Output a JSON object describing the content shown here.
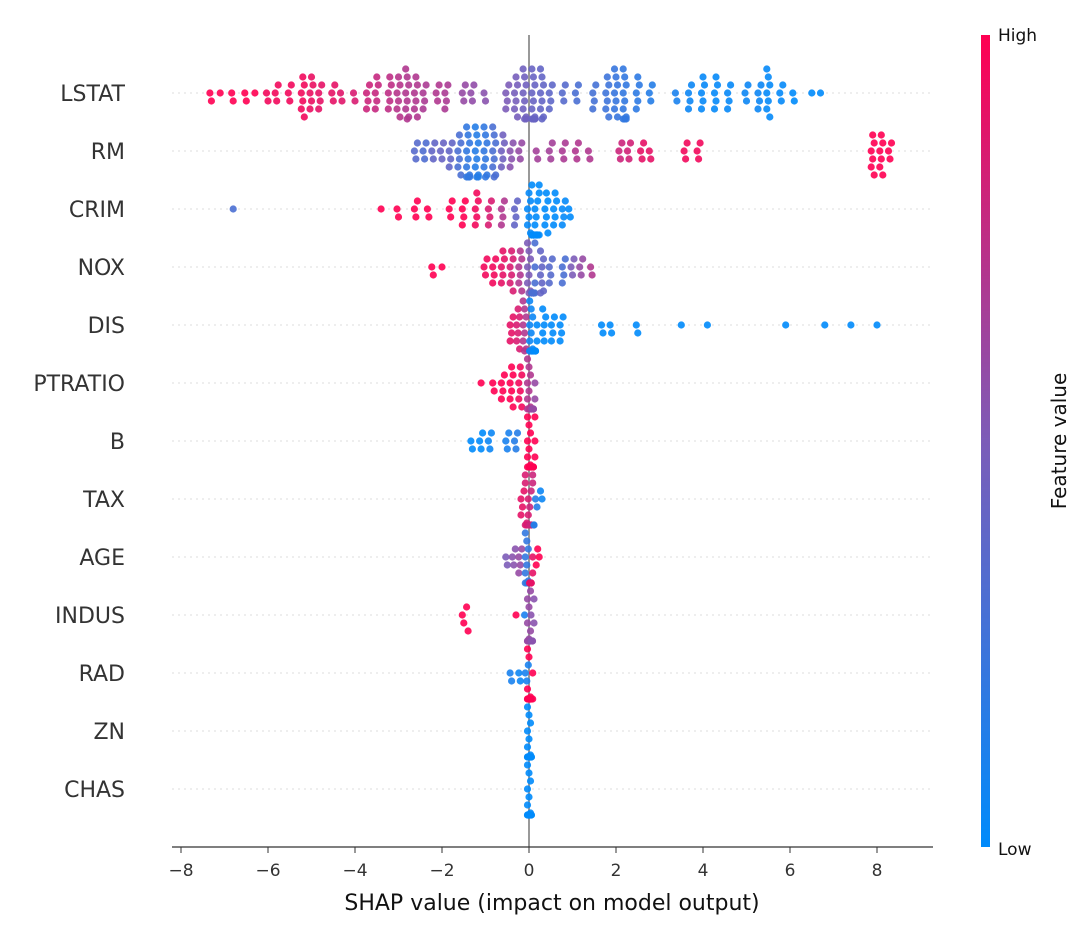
{
  "chart_data": {
    "type": "scatter",
    "subtype": "beeswarm",
    "title": "",
    "xlabel": "SHAP value (impact on model output)",
    "ylabel": "",
    "xlim": [
      -8.2,
      9.3
    ],
    "xticks": [
      -8,
      -6,
      -4,
      -2,
      0,
      2,
      4,
      6,
      8
    ],
    "xtick_labels": [
      "−8",
      "−6",
      "−4",
      "−2",
      "0",
      "2",
      "4",
      "6",
      "8"
    ],
    "grid": "dotted horizontal per feature",
    "colorbar": {
      "label": "Feature value",
      "high_label": "High",
      "low_label": "Low",
      "high_color": "#ff0052",
      "low_color": "#008bfb",
      "placement": "right"
    },
    "point_format": "[shap_value, feature_value_0_to_1, count]",
    "features": [
      {
        "name": "LSTAT",
        "points": [
          [
            -7.3,
            1,
            2
          ],
          [
            -7.1,
            1,
            1
          ],
          [
            -6.8,
            1,
            2
          ],
          [
            -6.5,
            1,
            2
          ],
          [
            -6.3,
            1,
            1
          ],
          [
            -6.0,
            0.95,
            2
          ],
          [
            -5.8,
            0.95,
            3
          ],
          [
            -5.5,
            0.95,
            3
          ],
          [
            -5.2,
            0.95,
            6
          ],
          [
            -5.0,
            0.92,
            5
          ],
          [
            -4.8,
            0.9,
            4
          ],
          [
            -4.5,
            0.9,
            3
          ],
          [
            -4.3,
            0.88,
            2
          ],
          [
            -4.0,
            0.85,
            2
          ],
          [
            -3.7,
            0.8,
            4
          ],
          [
            -3.5,
            0.78,
            5
          ],
          [
            -3.2,
            0.75,
            5
          ],
          [
            -3.0,
            0.72,
            6
          ],
          [
            -2.8,
            0.7,
            8
          ],
          [
            -2.6,
            0.7,
            6
          ],
          [
            -2.4,
            0.68,
            4
          ],
          [
            -2.1,
            0.7,
            3
          ],
          [
            -1.9,
            0.68,
            4
          ],
          [
            -1.5,
            0.6,
            3
          ],
          [
            -1.3,
            0.58,
            3
          ],
          [
            -1.0,
            0.55,
            2
          ],
          [
            -0.5,
            0.5,
            4
          ],
          [
            -0.3,
            0.48,
            6
          ],
          [
            -0.1,
            0.45,
            9
          ],
          [
            0.1,
            0.42,
            12
          ],
          [
            0.3,
            0.4,
            8
          ],
          [
            0.5,
            0.38,
            4
          ],
          [
            0.8,
            0.35,
            3
          ],
          [
            1.1,
            0.3,
            3
          ],
          [
            1.5,
            0.28,
            4
          ],
          [
            1.8,
            0.25,
            6
          ],
          [
            2.0,
            0.22,
            7
          ],
          [
            2.2,
            0.2,
            10
          ],
          [
            2.5,
            0.18,
            5
          ],
          [
            2.8,
            0.15,
            3
          ],
          [
            3.4,
            0.1,
            2
          ],
          [
            3.7,
            0.05,
            4
          ],
          [
            4.0,
            0.03,
            5
          ],
          [
            4.3,
            0.02,
            5
          ],
          [
            4.6,
            0.03,
            4
          ],
          [
            5.0,
            0.05,
            3
          ],
          [
            5.3,
            0.05,
            4
          ],
          [
            5.5,
            0.02,
            7
          ],
          [
            5.8,
            0.02,
            3
          ],
          [
            6.1,
            0.0,
            2
          ],
          [
            6.5,
            0.0,
            1
          ],
          [
            6.7,
            0.0,
            1
          ]
        ]
      },
      {
        "name": "RM",
        "points": [
          [
            -2.6,
            0.35,
            3
          ],
          [
            -2.4,
            0.32,
            3
          ],
          [
            -2.2,
            0.4,
            3
          ],
          [
            -2.0,
            0.42,
            3
          ],
          [
            -1.8,
            0.4,
            4
          ],
          [
            -1.6,
            0.3,
            6
          ],
          [
            -1.4,
            0.2,
            10
          ],
          [
            -1.2,
            0.15,
            9
          ],
          [
            -1.0,
            0.2,
            8
          ],
          [
            -0.8,
            0.3,
            8
          ],
          [
            -0.6,
            0.45,
            5
          ],
          [
            -0.4,
            0.55,
            4
          ],
          [
            -0.2,
            0.6,
            3
          ],
          [
            0.2,
            0.65,
            2
          ],
          [
            0.5,
            0.65,
            3
          ],
          [
            0.8,
            0.68,
            3
          ],
          [
            1.1,
            0.7,
            3
          ],
          [
            1.4,
            0.7,
            2
          ],
          [
            2.1,
            0.8,
            3
          ],
          [
            2.3,
            0.82,
            3
          ],
          [
            2.6,
            0.9,
            3
          ],
          [
            2.8,
            0.9,
            2
          ],
          [
            3.6,
            0.95,
            3
          ],
          [
            3.9,
            0.95,
            3
          ],
          [
            7.9,
            1,
            6
          ],
          [
            8.1,
            1,
            6
          ],
          [
            8.3,
            1,
            3
          ]
        ]
      },
      {
        "name": "CRIM",
        "points": [
          [
            -6.8,
            0.3,
            1
          ],
          [
            -3.4,
            1,
            1
          ],
          [
            -3.0,
            1,
            2
          ],
          [
            -2.6,
            1,
            3
          ],
          [
            -2.3,
            1,
            2
          ],
          [
            -1.8,
            1,
            3
          ],
          [
            -1.5,
            1,
            4
          ],
          [
            -1.2,
            0.95,
            5
          ],
          [
            -0.9,
            0.85,
            4
          ],
          [
            -0.6,
            0.7,
            4
          ],
          [
            -0.3,
            0.4,
            4
          ],
          [
            0.0,
            0.02,
            6
          ],
          [
            0.1,
            0.0,
            14
          ],
          [
            0.2,
            0.0,
            10
          ],
          [
            0.4,
            0.0,
            6
          ],
          [
            0.6,
            0.0,
            5
          ],
          [
            0.8,
            0.02,
            4
          ],
          [
            0.95,
            0.0,
            2
          ]
        ]
      },
      {
        "name": "NOX",
        "points": [
          [
            -2.2,
            1,
            2
          ],
          [
            -2.0,
            1,
            1
          ],
          [
            -1.0,
            0.95,
            3
          ],
          [
            -0.8,
            0.95,
            4
          ],
          [
            -0.6,
            0.9,
            5
          ],
          [
            -0.4,
            0.85,
            6
          ],
          [
            -0.2,
            0.7,
            6
          ],
          [
            0.0,
            0.5,
            8
          ],
          [
            0.1,
            0.3,
            12
          ],
          [
            0.3,
            0.4,
            7
          ],
          [
            0.5,
            0.35,
            4
          ],
          [
            0.8,
            0.3,
            4
          ],
          [
            1.0,
            0.5,
            3
          ],
          [
            1.2,
            0.6,
            3
          ],
          [
            1.45,
            0.7,
            2
          ]
        ]
      },
      {
        "name": "DIS",
        "points": [
          [
            -0.4,
            0.9,
            4
          ],
          [
            -0.25,
            0.85,
            6
          ],
          [
            -0.1,
            0.7,
            8
          ],
          [
            0.05,
            0.05,
            14
          ],
          [
            0.15,
            0.0,
            8
          ],
          [
            0.35,
            0.0,
            5
          ],
          [
            0.55,
            0.0,
            4
          ],
          [
            0.75,
            0.0,
            4
          ],
          [
            1.7,
            0.0,
            2
          ],
          [
            1.9,
            0.0,
            2
          ],
          [
            2.5,
            0.0,
            2
          ],
          [
            3.5,
            0.0,
            1
          ],
          [
            4.1,
            0.0,
            1
          ],
          [
            5.9,
            0.0,
            1
          ],
          [
            6.8,
            0.0,
            1
          ],
          [
            7.4,
            0.0,
            1
          ],
          [
            8.0,
            0.0,
            1
          ]
        ]
      },
      {
        "name": "PTRATIO",
        "points": [
          [
            -1.1,
            1,
            1
          ],
          [
            -0.8,
            1,
            2
          ],
          [
            -0.6,
            1,
            4
          ],
          [
            -0.4,
            1,
            6
          ],
          [
            -0.2,
            0.95,
            6
          ],
          [
            0.0,
            0.7,
            10
          ],
          [
            0.1,
            0.6,
            8
          ]
        ]
      },
      {
        "name": "B",
        "points": [
          [
            -1.3,
            0.0,
            2
          ],
          [
            -1.1,
            0.0,
            3
          ],
          [
            -0.9,
            0.05,
            3
          ],
          [
            -0.5,
            0.1,
            3
          ],
          [
            -0.3,
            0.15,
            3
          ],
          [
            0.0,
            1,
            12
          ],
          [
            0.1,
            1,
            10
          ]
        ]
      },
      {
        "name": "TAX",
        "points": [
          [
            -0.15,
            0.9,
            4
          ],
          [
            -0.05,
            0.85,
            8
          ],
          [
            0.05,
            0.8,
            8
          ],
          [
            0.15,
            0.15,
            4
          ],
          [
            0.3,
            0.05,
            2
          ]
        ]
      },
      {
        "name": "AGE",
        "points": [
          [
            -0.5,
            0.5,
            2
          ],
          [
            -0.35,
            0.55,
            3
          ],
          [
            -0.2,
            0.6,
            4
          ],
          [
            -0.05,
            0.2,
            10
          ],
          [
            0.05,
            0.9,
            8
          ],
          [
            0.2,
            1,
            3
          ]
        ]
      },
      {
        "name": "INDUS",
        "points": [
          [
            -1.5,
            1,
            2
          ],
          [
            -1.4,
            1,
            2
          ],
          [
            -0.3,
            1,
            1
          ],
          [
            -0.1,
            0.1,
            1
          ],
          [
            0.0,
            0.6,
            10
          ],
          [
            0.08,
            0.55,
            6
          ]
        ]
      },
      {
        "name": "RAD",
        "points": [
          [
            -0.4,
            0.1,
            2
          ],
          [
            -0.2,
            0.05,
            2
          ],
          [
            -0.05,
            0.1,
            3
          ],
          [
            0.0,
            1,
            12
          ],
          [
            0.05,
            1,
            6
          ]
        ]
      },
      {
        "name": "ZN",
        "points": [
          [
            0.0,
            0.0,
            14
          ],
          [
            0.02,
            0.0,
            6
          ]
        ]
      },
      {
        "name": "CHAS",
        "points": [
          [
            0.0,
            0.0,
            14
          ],
          [
            0.02,
            0.0,
            6
          ]
        ]
      }
    ]
  }
}
